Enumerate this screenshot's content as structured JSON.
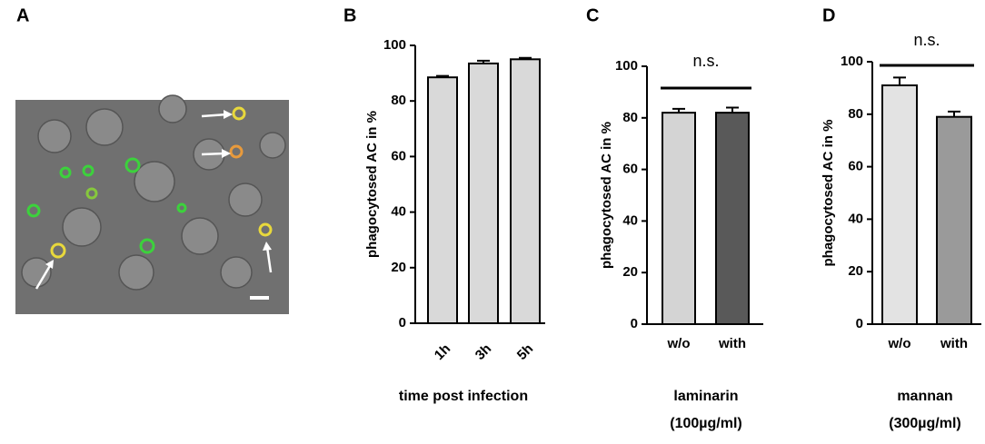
{
  "image_panel": {
    "panel": "A"
  },
  "chart_data": [
    {
      "type": "bar",
      "panel": "B",
      "ylabel": "phagocytosed AC in %",
      "xlabel": [
        "time post infection"
      ],
      "categories": [
        "1h",
        "3h",
        "5h"
      ],
      "values": [
        88.5,
        93.5,
        95
      ],
      "errors": [
        0.5,
        1,
        0.5
      ],
      "colors": [
        "#d9d9d9",
        "#d9d9d9",
        "#d9d9d9"
      ],
      "ylim": [
        0,
        100
      ],
      "yticks": [
        0,
        20,
        40,
        60,
        80,
        100
      ],
      "rotate_xticks": true
    },
    {
      "type": "bar",
      "panel": "C",
      "ylabel": "phagocytosed AC in %",
      "xlabel": [
        "laminarin",
        "(100µg/ml)"
      ],
      "categories": [
        "w/o",
        "with"
      ],
      "values": [
        82,
        82
      ],
      "errors": [
        1.5,
        2
      ],
      "colors": [
        "#d4d4d4",
        "#595959"
      ],
      "ylim": [
        0,
        100
      ],
      "yticks": [
        0,
        20,
        40,
        60,
        80,
        100
      ],
      "annotation": "n.s.",
      "rotate_xticks": false
    },
    {
      "type": "bar",
      "panel": "D",
      "ylabel": "phagocytosed AC in %",
      "xlabel": [
        "mannan",
        "(300µg/ml)"
      ],
      "categories": [
        "w/o",
        "with"
      ],
      "values": [
        91,
        79
      ],
      "errors": [
        3,
        2
      ],
      "colors": [
        "#e3e3e3",
        "#9a9a9a"
      ],
      "ylim": [
        0,
        100
      ],
      "yticks": [
        0,
        20,
        40,
        60,
        80,
        100
      ],
      "annotation": "n.s.",
      "rotate_xticks": false
    }
  ]
}
